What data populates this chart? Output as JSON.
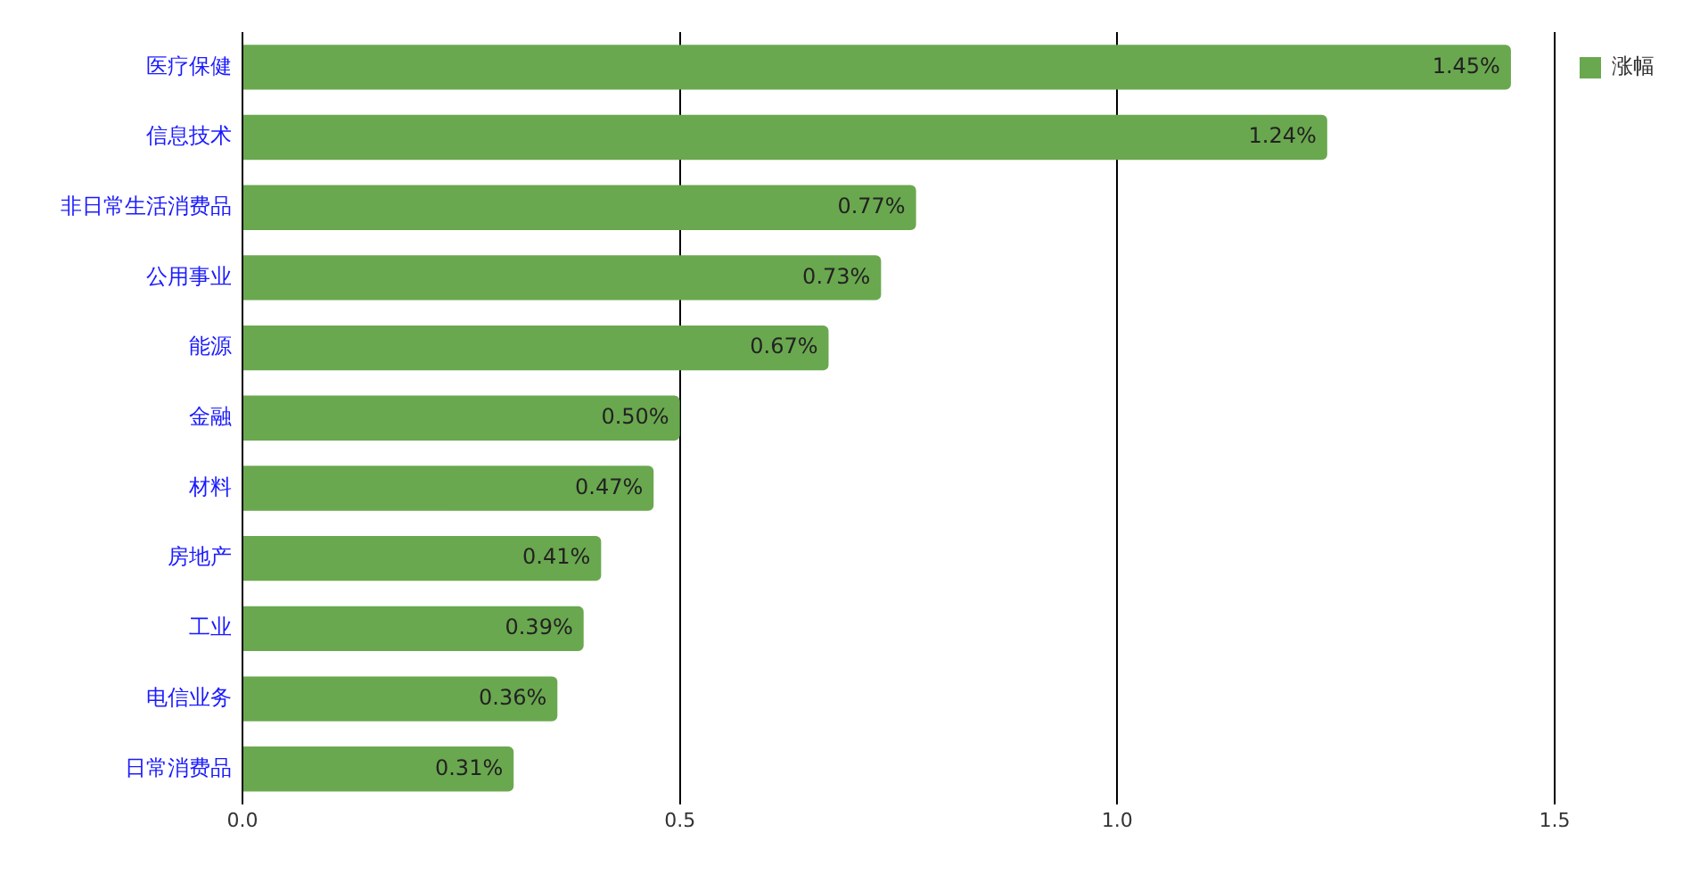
{
  "chart_data": {
    "type": "bar",
    "orientation": "horizontal",
    "categories": [
      "医疗保健",
      "信息技术",
      "非日常生活消费品",
      "公用事业",
      "能源",
      "金融",
      "材料",
      "房地产",
      "工业",
      "电信业务",
      "日常消费品"
    ],
    "series": [
      {
        "name": "涨幅",
        "color": "#6aa84f",
        "values": [
          1.45,
          1.24,
          0.77,
          0.73,
          0.67,
          0.5,
          0.47,
          0.41,
          0.39,
          0.36,
          0.31
        ],
        "value_labels": [
          "1.45%",
          "1.24%",
          "0.77%",
          "0.73%",
          "0.67%",
          "0.50%",
          "0.47%",
          "0.41%",
          "0.39%",
          "0.36%",
          "0.31%"
        ]
      }
    ],
    "xlim": [
      0,
      1.5
    ],
    "xticks": [
      {
        "value": 0,
        "label": "0.0"
      },
      {
        "value": 0.5,
        "label": "0.5"
      },
      {
        "value": 1,
        "label": "1.0"
      },
      {
        "value": 1.5,
        "label": "1.5"
      }
    ],
    "grid": "x",
    "legend": "top right"
  }
}
